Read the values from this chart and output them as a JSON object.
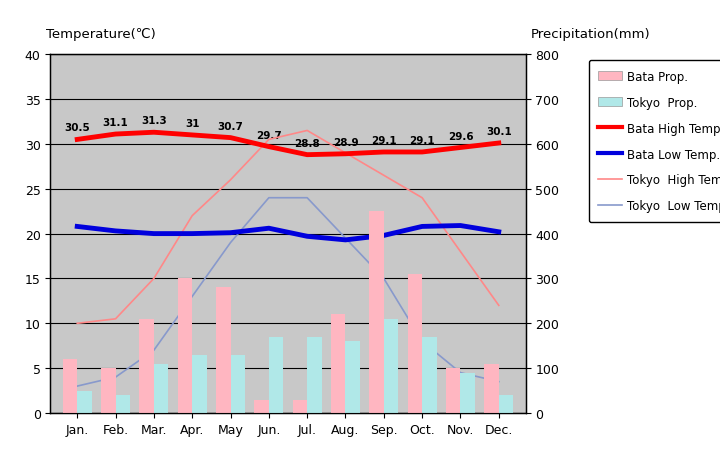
{
  "months": [
    "Jan.",
    "Feb.",
    "Mar.",
    "Apr.",
    "May",
    "Jun.",
    "Jul.",
    "Aug.",
    "Sep.",
    "Oct.",
    "Nov.",
    "Dec."
  ],
  "bata_precip": [
    120,
    100,
    210,
    300,
    280,
    30,
    30,
    220,
    450,
    310,
    100,
    110
  ],
  "tokyo_precip": [
    50,
    40,
    110,
    130,
    130,
    170,
    170,
    160,
    210,
    170,
    90,
    40
  ],
  "bata_high": [
    30.5,
    31.1,
    31.3,
    31.0,
    30.7,
    29.7,
    28.8,
    28.9,
    29.1,
    29.1,
    29.6,
    30.1
  ],
  "bata_low": [
    20.8,
    20.3,
    20.0,
    20.0,
    20.1,
    20.6,
    19.7,
    19.3,
    19.8,
    20.8,
    20.9,
    20.2
  ],
  "tokyo_high": [
    10.0,
    10.5,
    15.0,
    22.0,
    26.0,
    30.5,
    31.5,
    24.0,
    18.0,
    12.0
  ],
  "tokyo_high_months": [
    0,
    1,
    2,
    3,
    4,
    5,
    6,
    9,
    10,
    11
  ],
  "tokyo_low": [
    3.0,
    4.0,
    7.0,
    13.0,
    19.0,
    24.0,
    24.0,
    19.5,
    15.0,
    8.0,
    4.5,
    3.5
  ],
  "bata_high_labels": [
    "30.5",
    "31.1",
    "31.3",
    "31",
    "30.7",
    "29.7",
    "28.8",
    "28.9",
    "29.1",
    "29.1",
    "29.6",
    "30.1"
  ],
  "temp_ylim": [
    0,
    40
  ],
  "precip_ylim": [
    0,
    800
  ],
  "bg_color": "#c8c8c8",
  "plot_bg": "#c8c8c8",
  "fig_bg": "#ffffff",
  "bata_precip_color": "#ffb6c1",
  "tokyo_precip_color": "#b0e8e8",
  "bata_high_color": "#ff0000",
  "bata_low_color": "#0000dd",
  "tokyo_high_color": "#ff8888",
  "tokyo_low_color": "#8899cc",
  "title_left": "Temperature(℃)",
  "title_right": "Precipitation(mm)",
  "legend_labels": [
    "Bata Prop.",
    "Tokyo  Prop.",
    "Bata High Temp.",
    "Bata Low Temp.",
    "Tokyo  High Temp.",
    "Tokyo  Low Temp."
  ]
}
